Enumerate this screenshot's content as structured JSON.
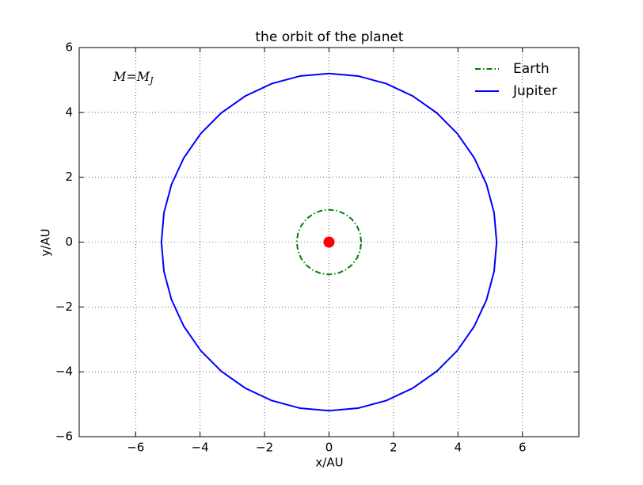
{
  "chart_data": {
    "type": "line",
    "title": "the orbit of the planet",
    "xlabel": "x/AU",
    "ylabel": "y/AU",
    "annotation": {
      "text": "M=M",
      "subscript": "J"
    },
    "series": [
      {
        "name": "Earth",
        "color": "#008000",
        "linestyle": "-.",
        "x": [
          1,
          0.966,
          0.866,
          0.707,
          0.5,
          0.259,
          0,
          -0.259,
          -0.5,
          -0.707,
          -0.866,
          -0.966,
          -1,
          -0.966,
          -0.866,
          -0.707,
          -0.5,
          -0.259,
          0,
          0.259,
          0.5,
          0.707,
          0.866,
          0.966,
          1
        ],
        "values": [
          0,
          0.259,
          0.5,
          0.707,
          0.866,
          0.966,
          1,
          0.966,
          0.866,
          0.707,
          0.5,
          0.259,
          0,
          -0.259,
          -0.5,
          -0.707,
          -0.866,
          -0.966,
          -1,
          -0.966,
          -0.866,
          -0.707,
          -0.5,
          -0.259,
          0
        ]
      },
      {
        "name": "Jupiter",
        "color": "#0000ff",
        "linestyle": "-",
        "x": [
          5.2,
          5.121,
          4.886,
          4.503,
          3.983,
          3.343,
          2.6,
          1.778,
          0.903,
          0,
          -0.903,
          -1.778,
          -2.6,
          -3.343,
          -3.983,
          -4.503,
          -4.886,
          -5.121,
          -5.2,
          -5.121,
          -4.886,
          -4.503,
          -3.983,
          -3.343,
          -2.6,
          -1.778,
          -0.903,
          0,
          0.903,
          1.778,
          2.6,
          3.343,
          3.983,
          4.503,
          4.886,
          5.121,
          5.2
        ],
        "values": [
          0,
          0.903,
          1.778,
          2.6,
          3.343,
          3.983,
          4.503,
          4.886,
          5.121,
          5.2,
          5.121,
          4.886,
          4.503,
          3.983,
          3.343,
          2.6,
          1.778,
          0.903,
          0,
          -0.903,
          -1.778,
          -2.6,
          -3.343,
          -3.983,
          -4.503,
          -4.886,
          -5.121,
          -5.2,
          -5.121,
          -4.886,
          -4.503,
          -3.983,
          -3.343,
          -2.6,
          -1.778,
          -0.903,
          0
        ]
      }
    ],
    "markers": [
      {
        "x": 0,
        "y": 0,
        "color": "#ff0000"
      }
    ],
    "xlim": [
      -7.75,
      7.75
    ],
    "ylim": [
      -6,
      6
    ],
    "xticks": [
      {
        "value": -6,
        "label": "−6"
      },
      {
        "value": -4,
        "label": "−4"
      },
      {
        "value": -2,
        "label": "−2"
      },
      0,
      2,
      4,
      6
    ],
    "yticks": [
      {
        "value": -6,
        "label": "−6"
      },
      {
        "value": -4,
        "label": "−4"
      },
      {
        "value": -2,
        "label": "−2"
      },
      0,
      2,
      4,
      6
    ],
    "grid": true,
    "legend": "upper right"
  }
}
